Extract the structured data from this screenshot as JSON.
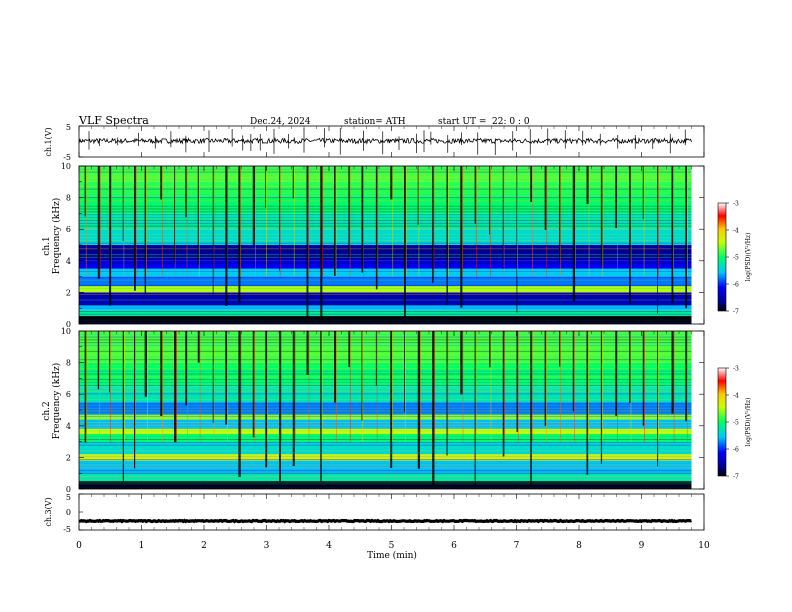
{
  "header": {
    "title": "VLF  Spectra",
    "date": "Dec.24, 2024",
    "station": "station= ATH",
    "start_label": "start  UT  =",
    "start_time": "22: 0  : 0"
  },
  "chart_data": [
    {
      "type": "line",
      "name": "ch1-waveform",
      "ylabel": "ch.1(V)",
      "ylim": [
        -5,
        5
      ],
      "yticks": [
        "5",
        "-5"
      ],
      "xlim": [
        0,
        10
      ],
      "baseline": 0.2,
      "noise": 0.8,
      "spike_times": [
        0.16,
        0.33,
        0.62,
        0.95,
        1.22,
        1.47,
        1.71,
        2.08,
        2.45,
        2.62,
        2.75,
        2.9,
        3.12,
        3.35,
        3.6,
        3.93,
        4.18,
        4.55,
        4.86,
        5.12,
        5.4,
        5.52,
        5.63,
        5.9,
        6.12,
        6.38,
        6.66,
        6.94,
        7.22,
        7.5,
        7.78,
        8.06,
        8.34,
        8.62,
        8.9,
        9.18,
        9.46,
        9.7
      ]
    },
    {
      "type": "heatmap",
      "name": "ch1-spectrogram",
      "ylabel_top": "ch.1",
      "ylabel": "Frequency (kHz)",
      "ylim": [
        0,
        10
      ],
      "yticks": [
        "0",
        "2",
        "4",
        "6",
        "8",
        "10"
      ],
      "xlim": [
        0,
        9.8
      ],
      "colorbar_label": "log(PSD)(V²/Hz)",
      "colorbar_ticks": [
        "-3",
        "-4",
        "-5",
        "-6",
        "-7"
      ],
      "colorbar_range": [
        -7,
        -3
      ],
      "bands": [
        {
          "f": [
            0.0,
            0.2
          ],
          "psd": -6.6
        },
        {
          "f": [
            0.2,
            0.5
          ],
          "psd": -6.9
        },
        {
          "f": [
            0.5,
            0.9
          ],
          "psd": -5.2
        },
        {
          "f": [
            0.9,
            1.2
          ],
          "psd": -5.6
        },
        {
          "f": [
            1.2,
            2.0
          ],
          "psd": -6.5
        },
        {
          "f": [
            2.0,
            2.4
          ],
          "psd": -4.5
        },
        {
          "f": [
            2.4,
            3.0
          ],
          "psd": -5.8
        },
        {
          "f": [
            3.0,
            3.5
          ],
          "psd": -5.5
        },
        {
          "f": [
            3.5,
            4.0
          ],
          "psd": -6.2
        },
        {
          "f": [
            4.0,
            5.0
          ],
          "psd": -6.6
        },
        {
          "f": [
            5.0,
            6.0
          ],
          "psd": -5.4
        },
        {
          "f": [
            6.0,
            7.0
          ],
          "psd": -5.2
        },
        {
          "f": [
            7.0,
            8.0
          ],
          "psd": -5.0
        },
        {
          "f": [
            8.0,
            9.0
          ],
          "psd": -4.9
        },
        {
          "f": [
            9.0,
            10.0
          ],
          "psd": -4.8
        }
      ],
      "sferic_times": [
        0.09,
        0.3,
        0.48,
        0.7,
        0.88,
        1.05,
        1.3,
        1.52,
        1.7,
        1.9,
        2.14,
        2.34,
        2.55,
        2.78,
        2.98,
        3.2,
        3.42,
        3.64,
        3.86,
        4.08,
        4.31,
        4.52,
        4.75,
        4.98,
        5.2,
        5.42,
        5.65,
        5.88,
        6.1,
        6.33,
        6.56,
        6.78,
        7.0,
        7.22,
        7.45,
        7.68,
        7.9,
        8.12,
        8.35,
        8.58,
        8.8,
        9.02,
        9.25,
        9.48,
        9.7
      ]
    },
    {
      "type": "heatmap",
      "name": "ch2-spectrogram",
      "ylabel_top": "ch.2",
      "ylabel": "Frequency (kHz)",
      "ylim": [
        0,
        10
      ],
      "yticks": [
        "0",
        "2",
        "4",
        "6",
        "8",
        "10"
      ],
      "xlim": [
        0,
        9.8
      ],
      "colorbar_label": "log(PSD)(V²/Hz)",
      "colorbar_ticks": [
        "-3",
        "-4",
        "-5",
        "-6",
        "-7"
      ],
      "colorbar_range": [
        -7,
        -3
      ],
      "bands": [
        {
          "f": [
            0.0,
            0.3
          ],
          "psd": -6.6
        },
        {
          "f": [
            0.3,
            1.0
          ],
          "psd": -5.3
        },
        {
          "f": [
            1.0,
            1.8
          ],
          "psd": -5.6
        },
        {
          "f": [
            1.8,
            2.2
          ],
          "psd": -4.3
        },
        {
          "f": [
            2.2,
            3.0
          ],
          "psd": -5.4
        },
        {
          "f": [
            3.0,
            3.5
          ],
          "psd": -5.0
        },
        {
          "f": [
            3.5,
            3.8
          ],
          "psd": -4.4
        },
        {
          "f": [
            3.8,
            4.4
          ],
          "psd": -5.6
        },
        {
          "f": [
            4.4,
            4.7
          ],
          "psd": -4.6
        },
        {
          "f": [
            4.7,
            5.5
          ],
          "psd": -5.8
        },
        {
          "f": [
            5.5,
            6.5
          ],
          "psd": -5.3
        },
        {
          "f": [
            6.5,
            8.0
          ],
          "psd": -5.0
        },
        {
          "f": [
            8.0,
            10.0
          ],
          "psd": -4.8
        }
      ],
      "sferic_times": [
        0.09,
        0.3,
        0.48,
        0.7,
        0.88,
        1.05,
        1.3,
        1.52,
        1.7,
        1.9,
        2.14,
        2.34,
        2.55,
        2.78,
        2.98,
        3.2,
        3.42,
        3.64,
        3.86,
        4.08,
        4.31,
        4.52,
        4.75,
        4.98,
        5.2,
        5.42,
        5.65,
        5.88,
        6.1,
        6.33,
        6.56,
        6.78,
        7.0,
        7.22,
        7.45,
        7.68,
        7.9,
        8.12,
        8.35,
        8.58,
        8.8,
        9.02,
        9.25,
        9.48,
        9.7
      ]
    },
    {
      "type": "line",
      "name": "ch3-waveform",
      "ylabel": "ch.3(V)",
      "ylim": [
        -5,
        5
      ],
      "yticks": [
        "5",
        "0",
        "-5"
      ],
      "xlim": [
        0,
        10
      ],
      "baseline": -2.5,
      "noise": 0.15,
      "xlabel": "Time  (min)",
      "xticks": [
        "0",
        "1",
        "2",
        "3",
        "4",
        "5",
        "6",
        "7",
        "8",
        "9",
        "10"
      ]
    }
  ]
}
